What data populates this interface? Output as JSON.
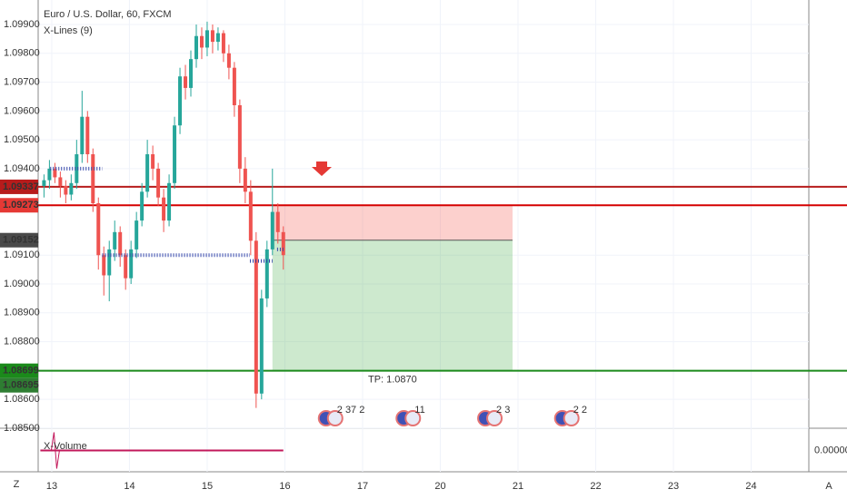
{
  "chart_data": {
    "type": "candlestick",
    "title": "Euro / U.S. Dollar, 60, FXCM",
    "subtitle": "X-Lines (9)",
    "ylim": [
      1.08506,
      1.09985
    ],
    "yticks": [
      {
        "value": 1.099,
        "label": "1.09900"
      },
      {
        "value": 1.098,
        "label": "1.09800"
      },
      {
        "value": 1.097,
        "label": "1.09700"
      },
      {
        "value": 1.096,
        "label": "1.09600"
      },
      {
        "value": 1.095,
        "label": "1.09500"
      },
      {
        "value": 1.094,
        "label": "1.09400"
      },
      {
        "value": 1.091,
        "label": "1.09100"
      },
      {
        "value": 1.09,
        "label": "1.09000"
      },
      {
        "value": 1.089,
        "label": "1.08900"
      },
      {
        "value": 1.088,
        "label": "1.08800"
      },
      {
        "value": 1.086,
        "label": "1.08600"
      },
      {
        "value": 1.085,
        "label": "1.08500"
      }
    ],
    "xlim": [
      -0.175,
      9.743
    ],
    "xticks": [
      {
        "value": 0,
        "label": "13"
      },
      {
        "value": 1,
        "label": "14"
      },
      {
        "value": 2,
        "label": "15"
      },
      {
        "value": 3,
        "label": "16"
      },
      {
        "value": 4,
        "label": "17"
      },
      {
        "value": 5,
        "label": "20"
      },
      {
        "value": 6,
        "label": "21"
      },
      {
        "value": 7,
        "label": "22"
      },
      {
        "value": 8,
        "label": "23"
      },
      {
        "value": 9,
        "label": "24"
      }
    ],
    "up_color": "#26a69a",
    "down_color": "#ef5350",
    "grid": true,
    "x": [
      -0.1,
      -0.03,
      0.04,
      0.11,
      0.18,
      0.25,
      0.32,
      0.39,
      0.46,
      0.53,
      0.6,
      0.67,
      0.74,
      0.81,
      0.88,
      0.95,
      1.02,
      1.09,
      1.16,
      1.23,
      1.3,
      1.37,
      1.44,
      1.51,
      1.58,
      1.65,
      1.72,
      1.79,
      1.86,
      1.93,
      2.0,
      2.07,
      2.14,
      2.21,
      2.28,
      2.35,
      2.42,
      2.49,
      2.56,
      2.63,
      2.7,
      2.77,
      2.84,
      2.91,
      2.98
    ],
    "ohlc": [
      [
        1.0934,
        1.0938,
        1.093,
        1.0936
      ],
      [
        1.0936,
        1.0943,
        1.0933,
        1.094
      ],
      [
        1.094,
        1.0942,
        1.0935,
        1.0937
      ],
      [
        1.0937,
        1.0939,
        1.093,
        1.0934
      ],
      [
        1.0934,
        1.0936,
        1.0928,
        1.0931
      ],
      [
        1.0931,
        1.0938,
        1.0929,
        1.0935
      ],
      [
        1.0935,
        1.095,
        1.0933,
        1.0945
      ],
      [
        1.0945,
        1.0967,
        1.0942,
        1.0958
      ],
      [
        1.0958,
        1.096,
        1.0942,
        1.0945
      ],
      [
        1.0945,
        1.0947,
        1.0925,
        1.0928
      ],
      [
        1.0928,
        1.093,
        1.0905,
        1.091
      ],
      [
        1.091,
        1.0913,
        1.0896,
        1.0903
      ],
      [
        1.0903,
        1.0915,
        1.0894,
        1.0912
      ],
      [
        1.0912,
        1.0922,
        1.0908,
        1.0918
      ],
      [
        1.0918,
        1.092,
        1.0906,
        1.091
      ],
      [
        1.091,
        1.0912,
        1.0898,
        1.0902
      ],
      [
        1.0902,
        1.0915,
        1.09,
        1.0912
      ],
      [
        1.0912,
        1.0925,
        1.0909,
        1.0922
      ],
      [
        1.0922,
        1.0935,
        1.092,
        1.0932
      ],
      [
        1.0932,
        1.095,
        1.093,
        1.0945
      ],
      [
        1.0945,
        1.0948,
        1.0936,
        1.094
      ],
      [
        1.094,
        1.0942,
        1.0927,
        1.093
      ],
      [
        1.093,
        1.0933,
        1.0918,
        1.0922
      ],
      [
        1.0922,
        1.0938,
        1.092,
        1.0935
      ],
      [
        1.0935,
        1.0958,
        1.0933,
        1.0955
      ],
      [
        1.0955,
        1.0975,
        1.0952,
        1.0972
      ],
      [
        1.0972,
        1.0976,
        1.0964,
        1.0968
      ],
      [
        1.0968,
        1.0981,
        1.0965,
        1.0978
      ],
      [
        1.0978,
        1.099,
        1.0975,
        1.0986
      ],
      [
        1.0986,
        1.0989,
        1.0978,
        1.0982
      ],
      [
        1.0982,
        1.0991,
        1.0979,
        1.0988
      ],
      [
        1.0988,
        1.099,
        1.098,
        1.0984
      ],
      [
        1.0984,
        1.0989,
        1.0981,
        1.0987
      ],
      [
        1.0987,
        1.0988,
        1.0977,
        1.098
      ],
      [
        1.098,
        1.0983,
        1.0971,
        1.0975
      ],
      [
        1.0975,
        1.0977,
        1.0958,
        1.0962
      ],
      [
        1.0962,
        1.0964,
        1.0935,
        1.094
      ],
      [
        1.094,
        1.0944,
        1.0928,
        1.0932
      ],
      [
        1.0932,
        1.0936,
        1.091,
        1.0915
      ],
      [
        1.0915,
        1.0918,
        1.0857,
        1.0862
      ],
      [
        1.0862,
        1.0898,
        1.086,
        1.0895
      ],
      [
        1.0895,
        1.0915,
        1.0892,
        1.0912
      ],
      [
        1.0912,
        1.094,
        1.091,
        1.0925
      ],
      [
        1.0925,
        1.0928,
        1.0914,
        1.0918
      ],
      [
        1.0918,
        1.092,
        1.0905,
        1.091
      ]
    ],
    "lines": [
      {
        "value": 1.09337,
        "color": "#b71c1c"
      },
      {
        "value": 1.09273,
        "color": "#d50000"
      },
      {
        "value": 1.08699,
        "color": "#1b8a1b"
      }
    ],
    "price_tags": [
      {
        "value": 1.09337,
        "color": "#b71c1c"
      },
      {
        "value": 1.09273,
        "color": "#e53935"
      },
      {
        "value": 1.09152,
        "color": "#4a4a4a"
      },
      {
        "value": 1.08699,
        "color": "#1b8a1b"
      },
      {
        "value": 1.08695,
        "color": "#2e7d32"
      }
    ],
    "position": {
      "entry": 1.09152,
      "stop": 1.09273,
      "target": 1.08699,
      "x0": 2.84,
      "x1": 5.93,
      "label": "TP: 1.0870"
    },
    "x_lines": [
      {
        "value": 1.094,
        "x0": -0.02,
        "x1": 0.65
      },
      {
        "value": 1.091,
        "x0": 0.65,
        "x1": 2.55
      },
      {
        "value": 1.0908,
        "x0": 2.55,
        "x1": 2.84
      },
      {
        "value": 1.0912,
        "x0": 2.9,
        "x1": 2.98
      }
    ],
    "events": [
      {
        "x": 3.6,
        "label": "2 37 2"
      },
      {
        "x": 4.6,
        "label": "11"
      },
      {
        "x": 5.65,
        "label": "2 3"
      },
      {
        "x": 6.64,
        "label": "2 2"
      }
    ],
    "volume": {
      "label": "X-Volume",
      "ylim": [
        -1,
        1
      ],
      "yticks": [
        {
          "value": 0,
          "label": "0.00000"
        }
      ],
      "color": "#c2185b"
    },
    "corner_labels": [
      "Z",
      "A"
    ]
  }
}
